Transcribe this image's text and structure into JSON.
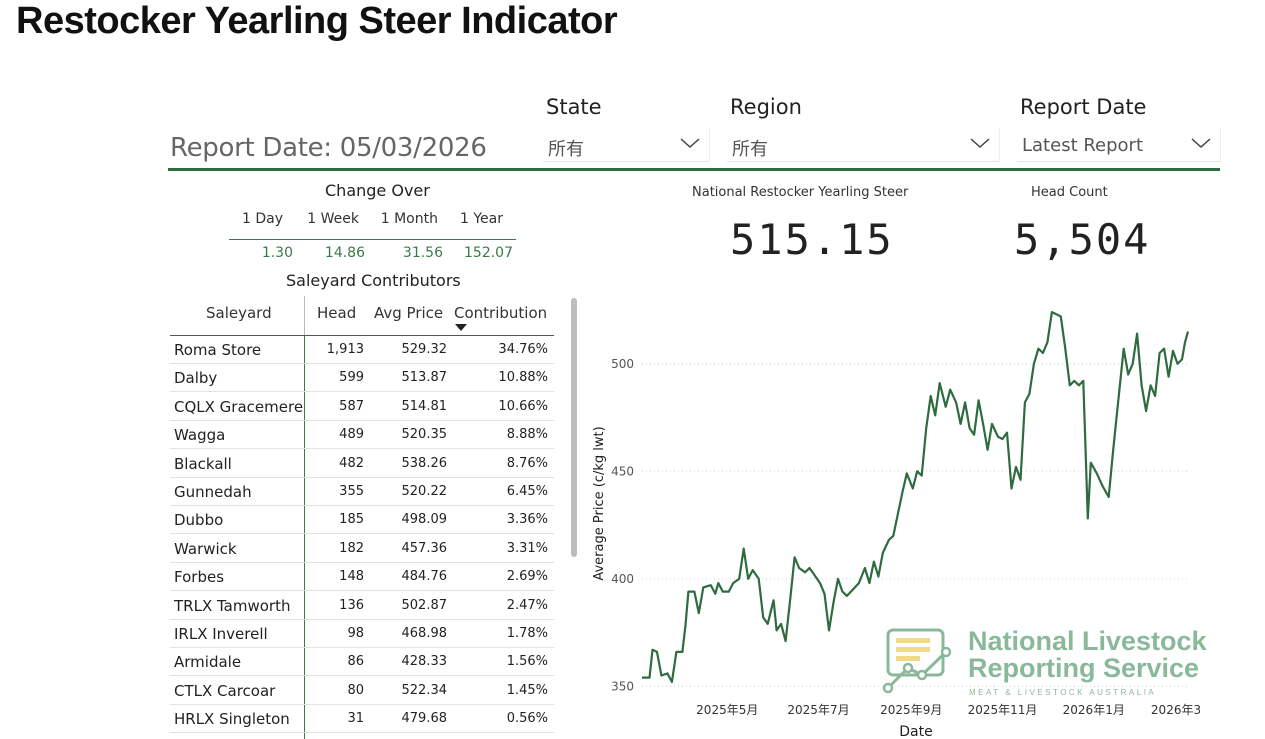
{
  "page": {
    "title": "Restocker Yearling Steer Indicator"
  },
  "report_date_label": "Report Date: 05/03/2026",
  "filters": {
    "state": {
      "title": "State",
      "value": "所有"
    },
    "region": {
      "title": "Region",
      "value": "所有"
    },
    "report_date": {
      "title": "Report Date",
      "value": "Latest Report"
    }
  },
  "change_over": {
    "title": "Change Over",
    "periods": [
      {
        "label": "1 Day",
        "value": "1.30"
      },
      {
        "label": "1 Week",
        "value": "14.86"
      },
      {
        "label": "1 Month",
        "value": "31.56"
      },
      {
        "label": "1 Year",
        "value": "152.07"
      }
    ]
  },
  "kpis": {
    "national": {
      "label": "National Restocker Yearling Steer",
      "value": "515.15"
    },
    "head_count": {
      "label": "Head Count",
      "value": "5,504"
    }
  },
  "saleyard_table": {
    "title": "Saleyard Contributors",
    "columns": [
      "Saleyard",
      "Head",
      "Avg Price",
      "Contribution"
    ],
    "sorted_column": "Contribution",
    "rows": [
      {
        "saleyard": "Roma Store",
        "head": "1,913",
        "avg_price": "529.32",
        "contribution": "34.76%"
      },
      {
        "saleyard": "Dalby",
        "head": "599",
        "avg_price": "513.87",
        "contribution": "10.88%"
      },
      {
        "saleyard": "CQLX Gracemere",
        "head": "587",
        "avg_price": "514.81",
        "contribution": "10.66%"
      },
      {
        "saleyard": "Wagga",
        "head": "489",
        "avg_price": "520.35",
        "contribution": "8.88%"
      },
      {
        "saleyard": "Blackall",
        "head": "482",
        "avg_price": "538.26",
        "contribution": "8.76%"
      },
      {
        "saleyard": "Gunnedah",
        "head": "355",
        "avg_price": "520.22",
        "contribution": "6.45%"
      },
      {
        "saleyard": "Dubbo",
        "head": "185",
        "avg_price": "498.09",
        "contribution": "3.36%"
      },
      {
        "saleyard": "Warwick",
        "head": "182",
        "avg_price": "457.36",
        "contribution": "3.31%"
      },
      {
        "saleyard": "Forbes",
        "head": "148",
        "avg_price": "484.76",
        "contribution": "2.69%"
      },
      {
        "saleyard": "TRLX Tamworth",
        "head": "136",
        "avg_price": "502.87",
        "contribution": "2.47%"
      },
      {
        "saleyard": "IRLX Inverell",
        "head": "98",
        "avg_price": "468.98",
        "contribution": "1.78%"
      },
      {
        "saleyard": "Armidale",
        "head": "86",
        "avg_price": "428.33",
        "contribution": "1.56%"
      },
      {
        "saleyard": "CTLX Carcoar",
        "head": "80",
        "avg_price": "522.34",
        "contribution": "1.45%"
      },
      {
        "saleyard": "HRLX Singleton",
        "head": "31",
        "avg_price": "479.68",
        "contribution": "0.56%"
      }
    ]
  },
  "chart_data": {
    "type": "line",
    "title": "",
    "xlabel": "Date",
    "ylabel": "Average Price (c/kg lwt)",
    "ylim": [
      345,
      525
    ],
    "yticks": [
      350,
      400,
      450,
      500
    ],
    "grid": "horizontal-dotted",
    "x_tick_labels": [
      "2025年5月",
      "2025年7月",
      "2025年9月",
      "2025年11月",
      "2026年1月",
      "2026年3月"
    ],
    "x_ticks": [
      "2025-05-01",
      "2025-07-01",
      "2025-09-01",
      "2025-11-01",
      "2026-01-01",
      "2026-03-01"
    ],
    "x_range": [
      "2025-03-05",
      "2026-03-05"
    ],
    "series": [
      {
        "color": "#2e6b3f",
        "points": [
          [
            "2025-03-05",
            354
          ],
          [
            "2025-03-10",
            354
          ],
          [
            "2025-03-12",
            367
          ],
          [
            "2025-03-15",
            366
          ],
          [
            "2025-03-18",
            355
          ],
          [
            "2025-03-22",
            356
          ],
          [
            "2025-03-25",
            352
          ],
          [
            "2025-03-28",
            366
          ],
          [
            "2025-04-01",
            366
          ],
          [
            "2025-04-03",
            378
          ],
          [
            "2025-04-05",
            394
          ],
          [
            "2025-04-09",
            394
          ],
          [
            "2025-04-12",
            384
          ],
          [
            "2025-04-15",
            396
          ],
          [
            "2025-04-20",
            397
          ],
          [
            "2025-04-23",
            393
          ],
          [
            "2025-04-25",
            398
          ],
          [
            "2025-04-28",
            394
          ],
          [
            "2025-05-02",
            394
          ],
          [
            "2025-05-05",
            398
          ],
          [
            "2025-05-09",
            400
          ],
          [
            "2025-05-12",
            414
          ],
          [
            "2025-05-15",
            400
          ],
          [
            "2025-05-18",
            404
          ],
          [
            "2025-05-22",
            400
          ],
          [
            "2025-05-25",
            382
          ],
          [
            "2025-05-28",
            379
          ],
          [
            "2025-06-01",
            390
          ],
          [
            "2025-06-03",
            376
          ],
          [
            "2025-06-06",
            379
          ],
          [
            "2025-06-09",
            371
          ],
          [
            "2025-06-12",
            390
          ],
          [
            "2025-06-15",
            410
          ],
          [
            "2025-06-18",
            405
          ],
          [
            "2025-06-22",
            403
          ],
          [
            "2025-06-25",
            405
          ],
          [
            "2025-06-28",
            402
          ],
          [
            "2025-07-02",
            398
          ],
          [
            "2025-07-05",
            393
          ],
          [
            "2025-07-08",
            376
          ],
          [
            "2025-07-11",
            389
          ],
          [
            "2025-07-14",
            400
          ],
          [
            "2025-07-17",
            394
          ],
          [
            "2025-07-20",
            392
          ],
          [
            "2025-07-24",
            395
          ],
          [
            "2025-07-28",
            398
          ],
          [
            "2025-08-01",
            405
          ],
          [
            "2025-08-04",
            398
          ],
          [
            "2025-08-07",
            408
          ],
          [
            "2025-08-10",
            401
          ],
          [
            "2025-08-13",
            412
          ],
          [
            "2025-08-17",
            418
          ],
          [
            "2025-08-20",
            420
          ],
          [
            "2025-08-23",
            430
          ],
          [
            "2025-08-26",
            440
          ],
          [
            "2025-08-29",
            449
          ],
          [
            "2025-09-02",
            442
          ],
          [
            "2025-09-05",
            450
          ],
          [
            "2025-09-08",
            448
          ],
          [
            "2025-09-11",
            470
          ],
          [
            "2025-09-14",
            485
          ],
          [
            "2025-09-17",
            476
          ],
          [
            "2025-09-20",
            491
          ],
          [
            "2025-09-24",
            480
          ],
          [
            "2025-09-27",
            488
          ],
          [
            "2025-10-01",
            482
          ],
          [
            "2025-10-04",
            472
          ],
          [
            "2025-10-07",
            482
          ],
          [
            "2025-10-10",
            470
          ],
          [
            "2025-10-13",
            467
          ],
          [
            "2025-10-16",
            483
          ],
          [
            "2025-10-19",
            472
          ],
          [
            "2025-10-22",
            460
          ],
          [
            "2025-10-25",
            472
          ],
          [
            "2025-10-29",
            466
          ],
          [
            "2025-11-01",
            465
          ],
          [
            "2025-11-04",
            468
          ],
          [
            "2025-11-07",
            442
          ],
          [
            "2025-11-10",
            452
          ],
          [
            "2025-11-13",
            446
          ],
          [
            "2025-11-16",
            482
          ],
          [
            "2025-11-19",
            486
          ],
          [
            "2025-11-22",
            500
          ],
          [
            "2025-11-25",
            507
          ],
          [
            "2025-11-28",
            505
          ],
          [
            "2025-12-01",
            510
          ],
          [
            "2025-12-04",
            524
          ],
          [
            "2025-12-07",
            523
          ],
          [
            "2025-12-10",
            522
          ],
          [
            "2025-12-13",
            507
          ],
          [
            "2025-12-16",
            490
          ],
          [
            "2025-12-19",
            492
          ],
          [
            "2025-12-22",
            490
          ],
          [
            "2025-12-25",
            492
          ],
          [
            "2025-12-28",
            428
          ],
          [
            "2025-12-30",
            454
          ],
          [
            "2026-01-03",
            449
          ],
          [
            "2026-01-07",
            443
          ],
          [
            "2026-01-11",
            438
          ],
          [
            "2026-01-14",
            460
          ],
          [
            "2026-01-18",
            487
          ],
          [
            "2026-01-21",
            507
          ],
          [
            "2026-01-24",
            495
          ],
          [
            "2026-01-27",
            500
          ],
          [
            "2026-01-30",
            514
          ],
          [
            "2026-02-02",
            490
          ],
          [
            "2026-02-05",
            478
          ],
          [
            "2026-02-08",
            490
          ],
          [
            "2026-02-11",
            485
          ],
          [
            "2026-02-14",
            505
          ],
          [
            "2026-02-17",
            507
          ],
          [
            "2026-02-20",
            494
          ],
          [
            "2026-02-23",
            506
          ],
          [
            "2026-02-26",
            500
          ],
          [
            "2026-03-01",
            502
          ],
          [
            "2026-03-03",
            510
          ],
          [
            "2026-03-05",
            515
          ]
        ]
      }
    ]
  },
  "logo": {
    "title_line1": "National Livestock",
    "title_line2": "Reporting Service",
    "subtitle": "MEAT & LIVESTOCK AUSTRALIA"
  },
  "colors": {
    "accent": "#2e6b3f",
    "positive": "#3a7a4a",
    "logo_green": "#8ab89a",
    "logo_yellow": "#f3d98a"
  }
}
